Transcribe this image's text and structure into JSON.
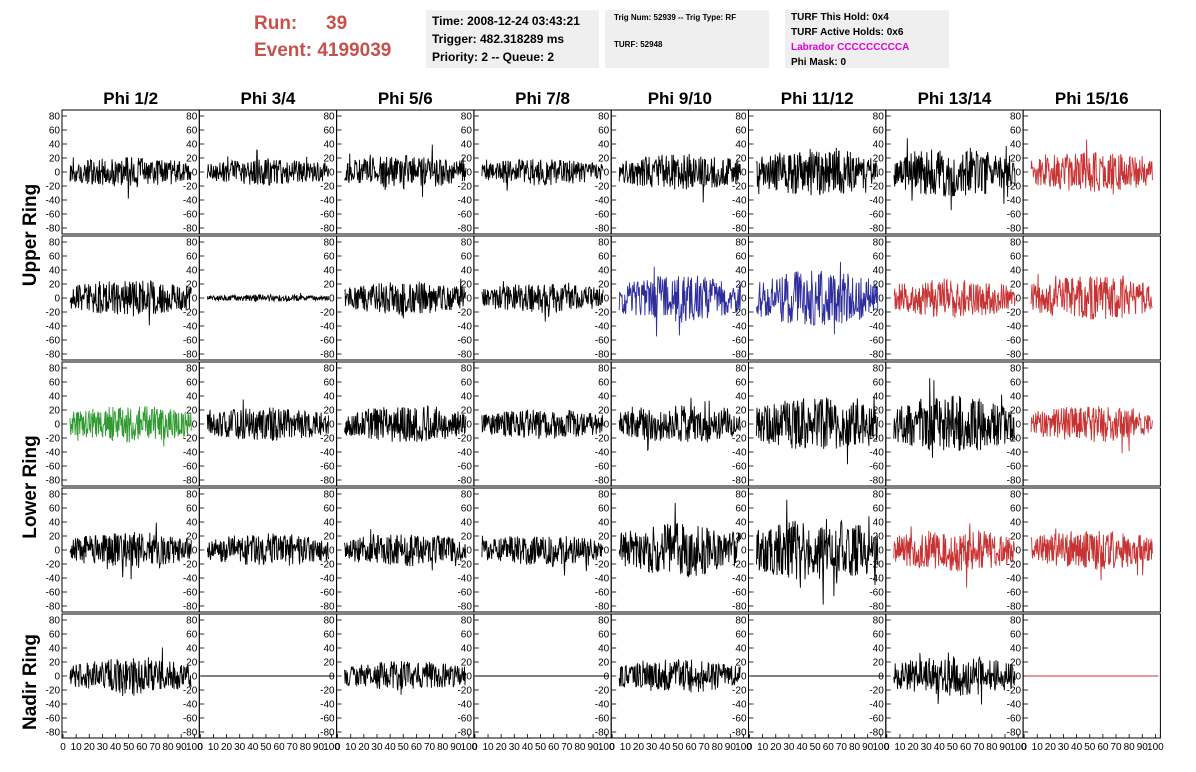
{
  "header": {
    "run_label": "Run:",
    "run_value": "39",
    "event_label": "Event:",
    "event_value": "4199039",
    "time": "Time: 2008-12-24 03:43:21",
    "trigger": "Trigger: 482.318289 ms",
    "priority": "Priority: 2 -- Queue: 2",
    "trig_num": "Trig Num: 52939 -- Trig Type: RF",
    "turf": "TURF: 52948",
    "turf_this_hold": "TURF This Hold: 0x4",
    "turf_active_holds": "TURF Active Holds: 0x6",
    "labrador": "Labrador CCCCCCCCCA",
    "phi_mask": "Phi Mask: 0"
  },
  "colors": {
    "header_red": "#c8504b",
    "labrador_magenta": "#e000e0",
    "trace_black": "#000000",
    "trace_red": "#c83232",
    "trace_blue": "#2d2d9c",
    "trace_green": "#2f9a2f"
  },
  "chart_data": {
    "type": "line",
    "layout": "grid of waveform panels, 5 rows by 8 columns",
    "columns": [
      "Phi 1/2",
      "Phi 3/4",
      "Phi 5/6",
      "Phi 7/8",
      "Phi 9/10",
      "Phi 11/12",
      "Phi 13/14",
      "Phi 15/16"
    ],
    "row_groups": [
      {
        "label": "Upper Ring",
        "rows": [
          0,
          1
        ]
      },
      {
        "label": "Lower Ring",
        "rows": [
          2,
          3
        ]
      },
      {
        "label": "Nadir Ring",
        "rows": [
          4
        ]
      }
    ],
    "ylim": [
      -80,
      80
    ],
    "y_ticks": [
      80,
      60,
      40,
      20,
      0,
      -20,
      -40,
      -60,
      -80
    ],
    "xlim": [
      0,
      100
    ],
    "x_tick_labels": [
      "0",
      "10",
      "20",
      "30",
      "40",
      "50",
      "60",
      "70",
      "80",
      "90",
      "100"
    ],
    "panels": [
      [
        "black:18",
        "black:16",
        "black:20",
        "black:16",
        "black:22",
        "black:28",
        "black:30",
        "red:24"
      ],
      [
        "black:22",
        "black:4",
        "black:20",
        "black:18",
        "blue:28",
        "blue:34",
        "red:24",
        "red:26"
      ],
      [
        "green:22",
        "black:20",
        "black:22",
        "black:18",
        "black:22",
        "black:32",
        "black:34",
        "red:22"
      ],
      [
        "black:22",
        "black:20",
        "black:20",
        "black:18",
        "black:32",
        "black:38",
        "red:26",
        "red:24"
      ],
      [
        "black:22",
        "flat",
        "black:18",
        "flat",
        "black:20",
        "flat",
        "black:24",
        "redflat"
      ]
    ]
  }
}
